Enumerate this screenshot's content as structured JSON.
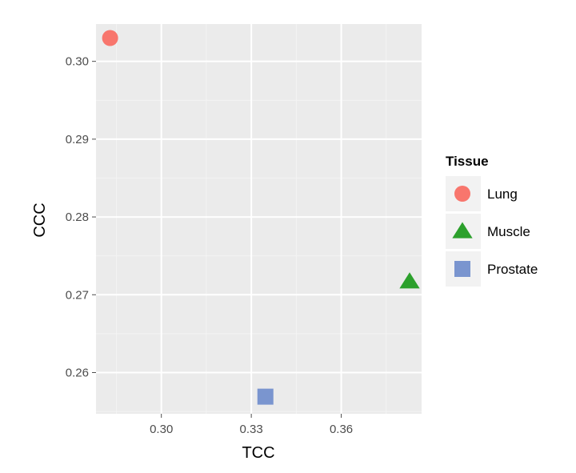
{
  "chart_data": {
    "type": "scatter",
    "xlabel": "TCC",
    "ylabel": "CCC",
    "xlim": [
      0.2782,
      0.3868
    ],
    "ylim": [
      0.2547,
      0.3048
    ],
    "x_ticks": [
      0.3,
      0.33,
      0.36
    ],
    "x_tick_labels": [
      "0.30",
      "0.33",
      "0.36"
    ],
    "y_ticks": [
      0.26,
      0.27,
      0.28,
      0.29,
      0.3
    ],
    "y_tick_labels": [
      "0.26",
      "0.27",
      "0.28",
      "0.29",
      "0.30"
    ],
    "grid": true,
    "panel_background": "#ebebeb",
    "legend": {
      "title": "Tissue",
      "placement": "right"
    },
    "series": [
      {
        "name": "Lung",
        "shape": "circle",
        "color": "#f8766d",
        "x": 0.2829,
        "y": 0.303
      },
      {
        "name": "Muscle",
        "shape": "triangle",
        "color": "#2ca02c",
        "x": 0.3828,
        "y": 0.2717
      },
      {
        "name": "Prostate",
        "shape": "square",
        "color": "#7a95cf",
        "x": 0.3347,
        "y": 0.2569
      }
    ]
  }
}
